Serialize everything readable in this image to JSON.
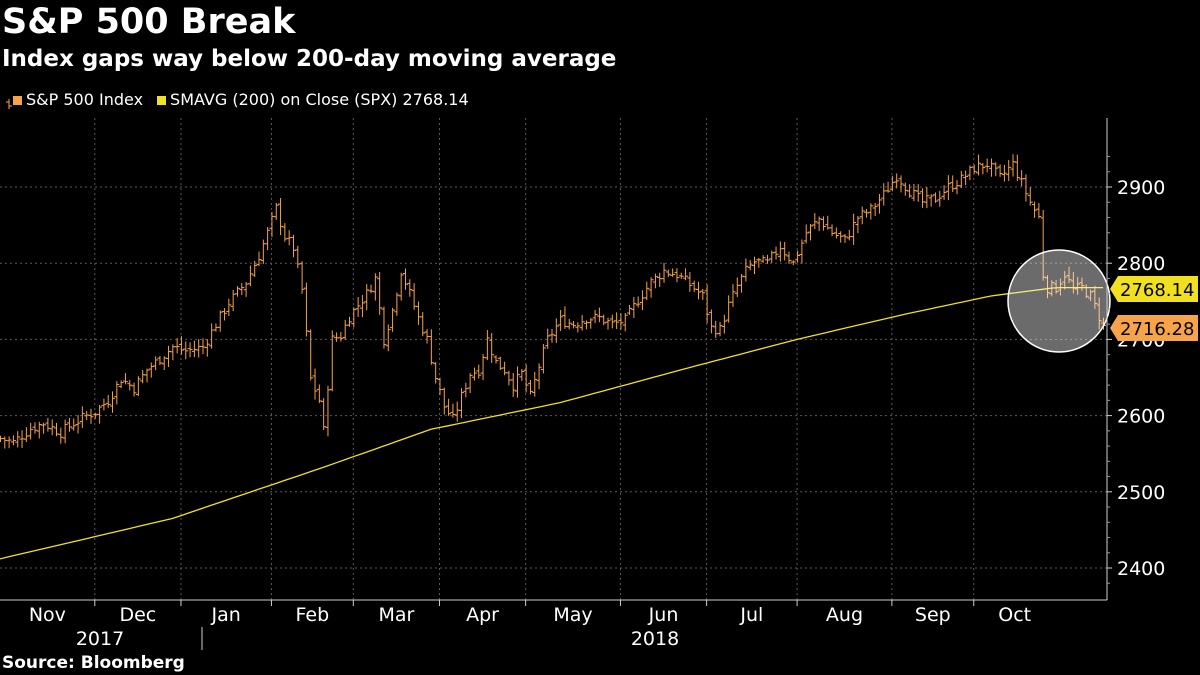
{
  "title": "S&P 500 Break",
  "subtitle": "Index gaps way below 200-day moving average",
  "source": "Source:  Bloomberg",
  "legend": {
    "series1": "S&P 500 Index",
    "series2": "SMAVG (200)  on Close (SPX) 2768.14"
  },
  "colors": {
    "background": "#000000",
    "price": "#f7a34a",
    "sma": "#f0e020",
    "grid": "#5a5a5a",
    "text": "#ffffff"
  },
  "chart_data": {
    "type": "bar",
    "title": "S&P 500 Break",
    "subtitle": "Index gaps way below 200-day moving average",
    "ylim": [
      2360,
      2960
    ],
    "y_ticks": [
      2400,
      2500,
      2600,
      2700,
      2800,
      2900
    ],
    "x_month_labels": [
      "Nov",
      "Dec",
      "Jan",
      "Feb",
      "Mar",
      "Apr",
      "May",
      "Jun",
      "Jul",
      "Aug",
      "Sep",
      "Oct"
    ],
    "x_year_labels": [
      "2017",
      "2018"
    ],
    "month_boundaries_days": [
      0,
      22,
      42,
      63,
      82,
      102,
      122,
      144,
      164,
      185,
      207,
      226,
      245
    ],
    "total_days": 256,
    "series": [
      {
        "name": "S&P 500 Index",
        "kind": "ohlc",
        "close_keypoints": [
          [
            0,
            2570
          ],
          [
            3,
            2565
          ],
          [
            7,
            2583
          ],
          [
            10,
            2590
          ],
          [
            14,
            2578
          ],
          [
            17,
            2590
          ],
          [
            20,
            2600
          ],
          [
            22,
            2605
          ],
          [
            25,
            2620
          ],
          [
            28,
            2648
          ],
          [
            31,
            2636
          ],
          [
            34,
            2660
          ],
          [
            37,
            2675
          ],
          [
            40,
            2690
          ],
          [
            43,
            2685
          ],
          [
            47,
            2690
          ],
          [
            50,
            2720
          ],
          [
            53,
            2748
          ],
          [
            57,
            2775
          ],
          [
            60,
            2810
          ],
          [
            62,
            2840
          ],
          [
            64,
            2872
          ],
          [
            66,
            2835
          ],
          [
            68,
            2820
          ],
          [
            70,
            2765
          ],
          [
            72,
            2648
          ],
          [
            74,
            2620
          ],
          [
            75,
            2580
          ],
          [
            77,
            2700
          ],
          [
            79,
            2705
          ],
          [
            81,
            2730
          ],
          [
            83,
            2745
          ],
          [
            85,
            2760
          ],
          [
            87,
            2780
          ],
          [
            89,
            2700
          ],
          [
            91,
            2738
          ],
          [
            93,
            2790
          ],
          [
            95,
            2760
          ],
          [
            97,
            2728
          ],
          [
            99,
            2700
          ],
          [
            101,
            2650
          ],
          [
            103,
            2612
          ],
          [
            105,
            2595
          ],
          [
            107,
            2625
          ],
          [
            109,
            2655
          ],
          [
            111,
            2660
          ],
          [
            113,
            2700
          ],
          [
            115,
            2670
          ],
          [
            117,
            2660
          ],
          [
            119,
            2640
          ],
          [
            121,
            2655
          ],
          [
            123,
            2625
          ],
          [
            125,
            2665
          ],
          [
            127,
            2700
          ],
          [
            130,
            2725
          ],
          [
            133,
            2720
          ],
          [
            136,
            2728
          ],
          [
            139,
            2728
          ],
          [
            142,
            2720
          ],
          [
            145,
            2725
          ],
          [
            148,
            2752
          ],
          [
            151,
            2775
          ],
          [
            154,
            2790
          ],
          [
            157,
            2785
          ],
          [
            160,
            2772
          ],
          [
            163,
            2757
          ],
          [
            165,
            2715
          ],
          [
            167,
            2713
          ],
          [
            169,
            2745
          ],
          [
            171,
            2770
          ],
          [
            173,
            2790
          ],
          [
            175,
            2802
          ],
          [
            178,
            2800
          ],
          [
            181,
            2822
          ],
          [
            184,
            2800
          ],
          [
            187,
            2840
          ],
          [
            190,
            2858
          ],
          [
            193,
            2840
          ],
          [
            196,
            2830
          ],
          [
            199,
            2860
          ],
          [
            202,
            2870
          ],
          [
            205,
            2890
          ],
          [
            208,
            2915
          ],
          [
            211,
            2895
          ],
          [
            214,
            2880
          ],
          [
            217,
            2885
          ],
          [
            220,
            2900
          ],
          [
            223,
            2910
          ],
          [
            226,
            2925
          ],
          [
            229,
            2930
          ],
          [
            232,
            2912
          ],
          [
            235,
            2930
          ],
          [
            237,
            2905
          ],
          [
            239,
            2880
          ],
          [
            241,
            2860
          ],
          [
            242,
            2785
          ],
          [
            243,
            2768
          ],
          [
            245,
            2768
          ],
          [
            247,
            2786
          ],
          [
            249,
            2765
          ],
          [
            251,
            2768
          ],
          [
            253,
            2757
          ],
          [
            256,
            2716
          ]
        ]
      },
      {
        "name": "SMAVG (200)  on Close (SPX)",
        "kind": "line",
        "keypoints": [
          [
            0,
            2412
          ],
          [
            40,
            2465
          ],
          [
            75,
            2532
          ],
          [
            100,
            2582
          ],
          [
            130,
            2617
          ],
          [
            160,
            2663
          ],
          [
            185,
            2700
          ],
          [
            210,
            2733
          ],
          [
            230,
            2757
          ],
          [
            245,
            2768
          ],
          [
            256,
            2768
          ]
        ]
      }
    ],
    "last_values": {
      "sma": "2768.14",
      "price": "2716.28"
    },
    "annotation": "circle highlighting October break below moving average"
  }
}
